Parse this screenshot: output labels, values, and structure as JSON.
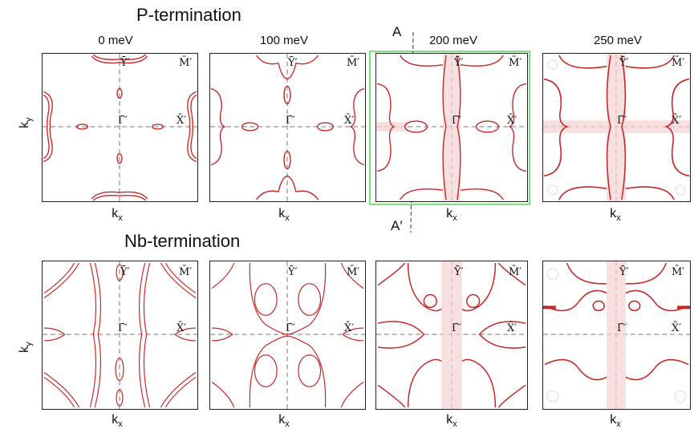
{
  "rows": [
    {
      "title": "P-termination",
      "panels": [
        {
          "energy": "0 meV"
        },
        {
          "energy": "100 meV"
        },
        {
          "energy": "200 meV"
        },
        {
          "energy": "250 meV"
        }
      ]
    },
    {
      "title": "Nb-termination",
      "panels": [
        {
          "energy": ""
        },
        {
          "energy": ""
        },
        {
          "energy": ""
        },
        {
          "energy": ""
        }
      ]
    }
  ],
  "points": {
    "gamma": "Γ̄′",
    "x": "X̄′",
    "y": "Ȳ′",
    "m": "M̄′"
  },
  "axes": {
    "ky": "k",
    "ky_sub": "y",
    "kx": "k",
    "kx_sub": "x"
  },
  "cut": {
    "start": "A",
    "end": "A′"
  },
  "colors": {
    "contour": "#c62828",
    "highlight": "#7ee07e"
  }
}
